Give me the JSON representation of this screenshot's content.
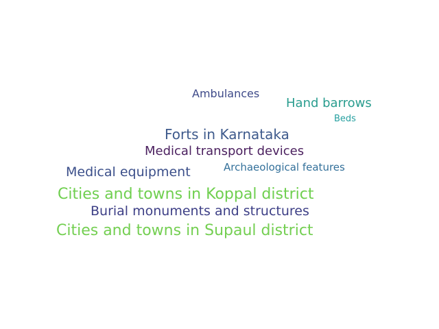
{
  "word_cloud": {
    "words": [
      {
        "text": "Ambulances",
        "color": "#3e4a89"
      },
      {
        "text": "Hand barrows",
        "color": "#2a9d8f"
      },
      {
        "text": "Beds",
        "color": "#26a0a0"
      },
      {
        "text": "Forts in Karnataka",
        "color": "#3e5a8c"
      },
      {
        "text": "Medical transport devices",
        "color": "#4a1f5e"
      },
      {
        "text": "Medical equipment",
        "color": "#3b4f8a"
      },
      {
        "text": "Archaeological features",
        "color": "#33709a"
      },
      {
        "text": "Cities and towns in Koppal district",
        "color": "#6fcf4f"
      },
      {
        "text": "Burial monuments and structures",
        "color": "#3d3f86"
      },
      {
        "text": "Cities and towns in Supaul district",
        "color": "#74cf52"
      }
    ]
  }
}
